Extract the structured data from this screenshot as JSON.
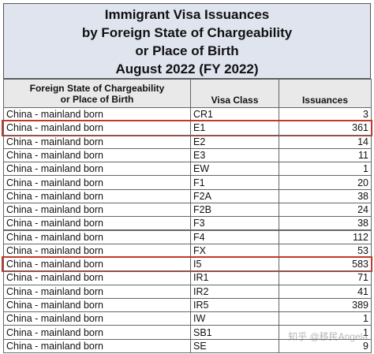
{
  "title": {
    "lines": [
      "Immigrant Visa Issuances",
      "by Foreign State of Chargeability",
      "or Place of Birth",
      "August 2022 (FY 2022)"
    ]
  },
  "table": {
    "header": {
      "country": [
        "Foreign State of Chargeability",
        "or Place of Birth"
      ],
      "visa_class": "Visa Class",
      "issuances": "Issuances"
    },
    "rows": [
      {
        "country": "China - mainland born",
        "visa_class": "CR1",
        "issuances": 3
      },
      {
        "country": "China - mainland born",
        "visa_class": "E1",
        "issuances": 361,
        "highlight": true
      },
      {
        "country": "China - mainland born",
        "visa_class": "E2",
        "issuances": 14
      },
      {
        "country": "China - mainland born",
        "visa_class": "E3",
        "issuances": 11
      },
      {
        "country": "China - mainland born",
        "visa_class": "EW",
        "issuances": 1
      },
      {
        "country": "China - mainland born",
        "visa_class": "F1",
        "issuances": 20
      },
      {
        "country": "China - mainland born",
        "visa_class": "F2A",
        "issuances": 38
      },
      {
        "country": "China - mainland born",
        "visa_class": "F2B",
        "issuances": 24
      },
      {
        "country": "China - mainland born",
        "visa_class": "F3",
        "issuances": 38
      },
      {
        "country": "China - mainland born",
        "visa_class": "F4",
        "issuances": 112
      },
      {
        "country": "China - mainland born",
        "visa_class": "FX",
        "issuances": 53
      },
      {
        "country": "China - mainland born",
        "visa_class": "I5",
        "issuances": 583,
        "highlight": true
      },
      {
        "country": "China - mainland born",
        "visa_class": "IR1",
        "issuances": 71
      },
      {
        "country": "China - mainland born",
        "visa_class": "IR2",
        "issuances": 41
      },
      {
        "country": "China - mainland born",
        "visa_class": "IR5",
        "issuances": 389
      },
      {
        "country": "China - mainland born",
        "visa_class": "IW",
        "issuances": 1
      },
      {
        "country": "China - mainland born",
        "visa_class": "SB1",
        "issuances": 1
      },
      {
        "country": "China - mainland born",
        "visa_class": "SE",
        "issuances": 9
      }
    ]
  },
  "watermark": "知乎 @移民Angela"
}
